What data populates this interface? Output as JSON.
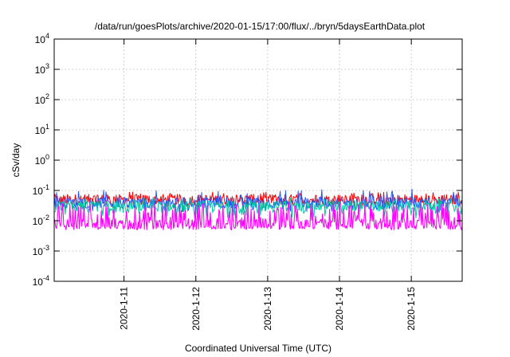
{
  "chart_data": {
    "type": "line",
    "title": "/data/run/goesPlots/archive/2020-01-15/17:00/flux/../bryn/5daysEarthData.plot",
    "xlabel": "Coordinated Universal Time (UTC)",
    "ylabel": "cSv/day",
    "yscale": "log",
    "ylim": [
      0.0001,
      10000
    ],
    "y_ticks": [
      {
        "base": "10",
        "exp": "-4",
        "value": 0.0001
      },
      {
        "base": "10",
        "exp": "-3",
        "value": 0.001
      },
      {
        "base": "10",
        "exp": "-2",
        "value": 0.01
      },
      {
        "base": "10",
        "exp": "-1",
        "value": 0.1
      },
      {
        "base": "10",
        "exp": "0",
        "value": 1
      },
      {
        "base": "10",
        "exp": "1",
        "value": 10
      },
      {
        "base": "10",
        "exp": "2",
        "value": 100
      },
      {
        "base": "10",
        "exp": "3",
        "value": 1000
      },
      {
        "base": "10",
        "exp": "4",
        "value": 10000
      }
    ],
    "xlim": [
      "2020-01-10T00:40",
      "2020-01-15T17:00"
    ],
    "x_ticks": [
      "2020-1-11",
      "2020-1-12",
      "2020-1-13",
      "2020-1-14",
      "2020-1-15"
    ],
    "grid": true,
    "series": [
      {
        "color": "#ff0000",
        "typical": 0.05,
        "min": 0.03,
        "max": 0.09
      },
      {
        "color": "#2255ff",
        "typical": 0.04,
        "min": 0.02,
        "max": 0.12
      },
      {
        "color": "#00c8a0",
        "typical": 0.03,
        "min": 0.012,
        "max": 0.06
      },
      {
        "color": "#ff00ff",
        "typical": 0.008,
        "min": 0.005,
        "max": 0.04
      }
    ]
  }
}
